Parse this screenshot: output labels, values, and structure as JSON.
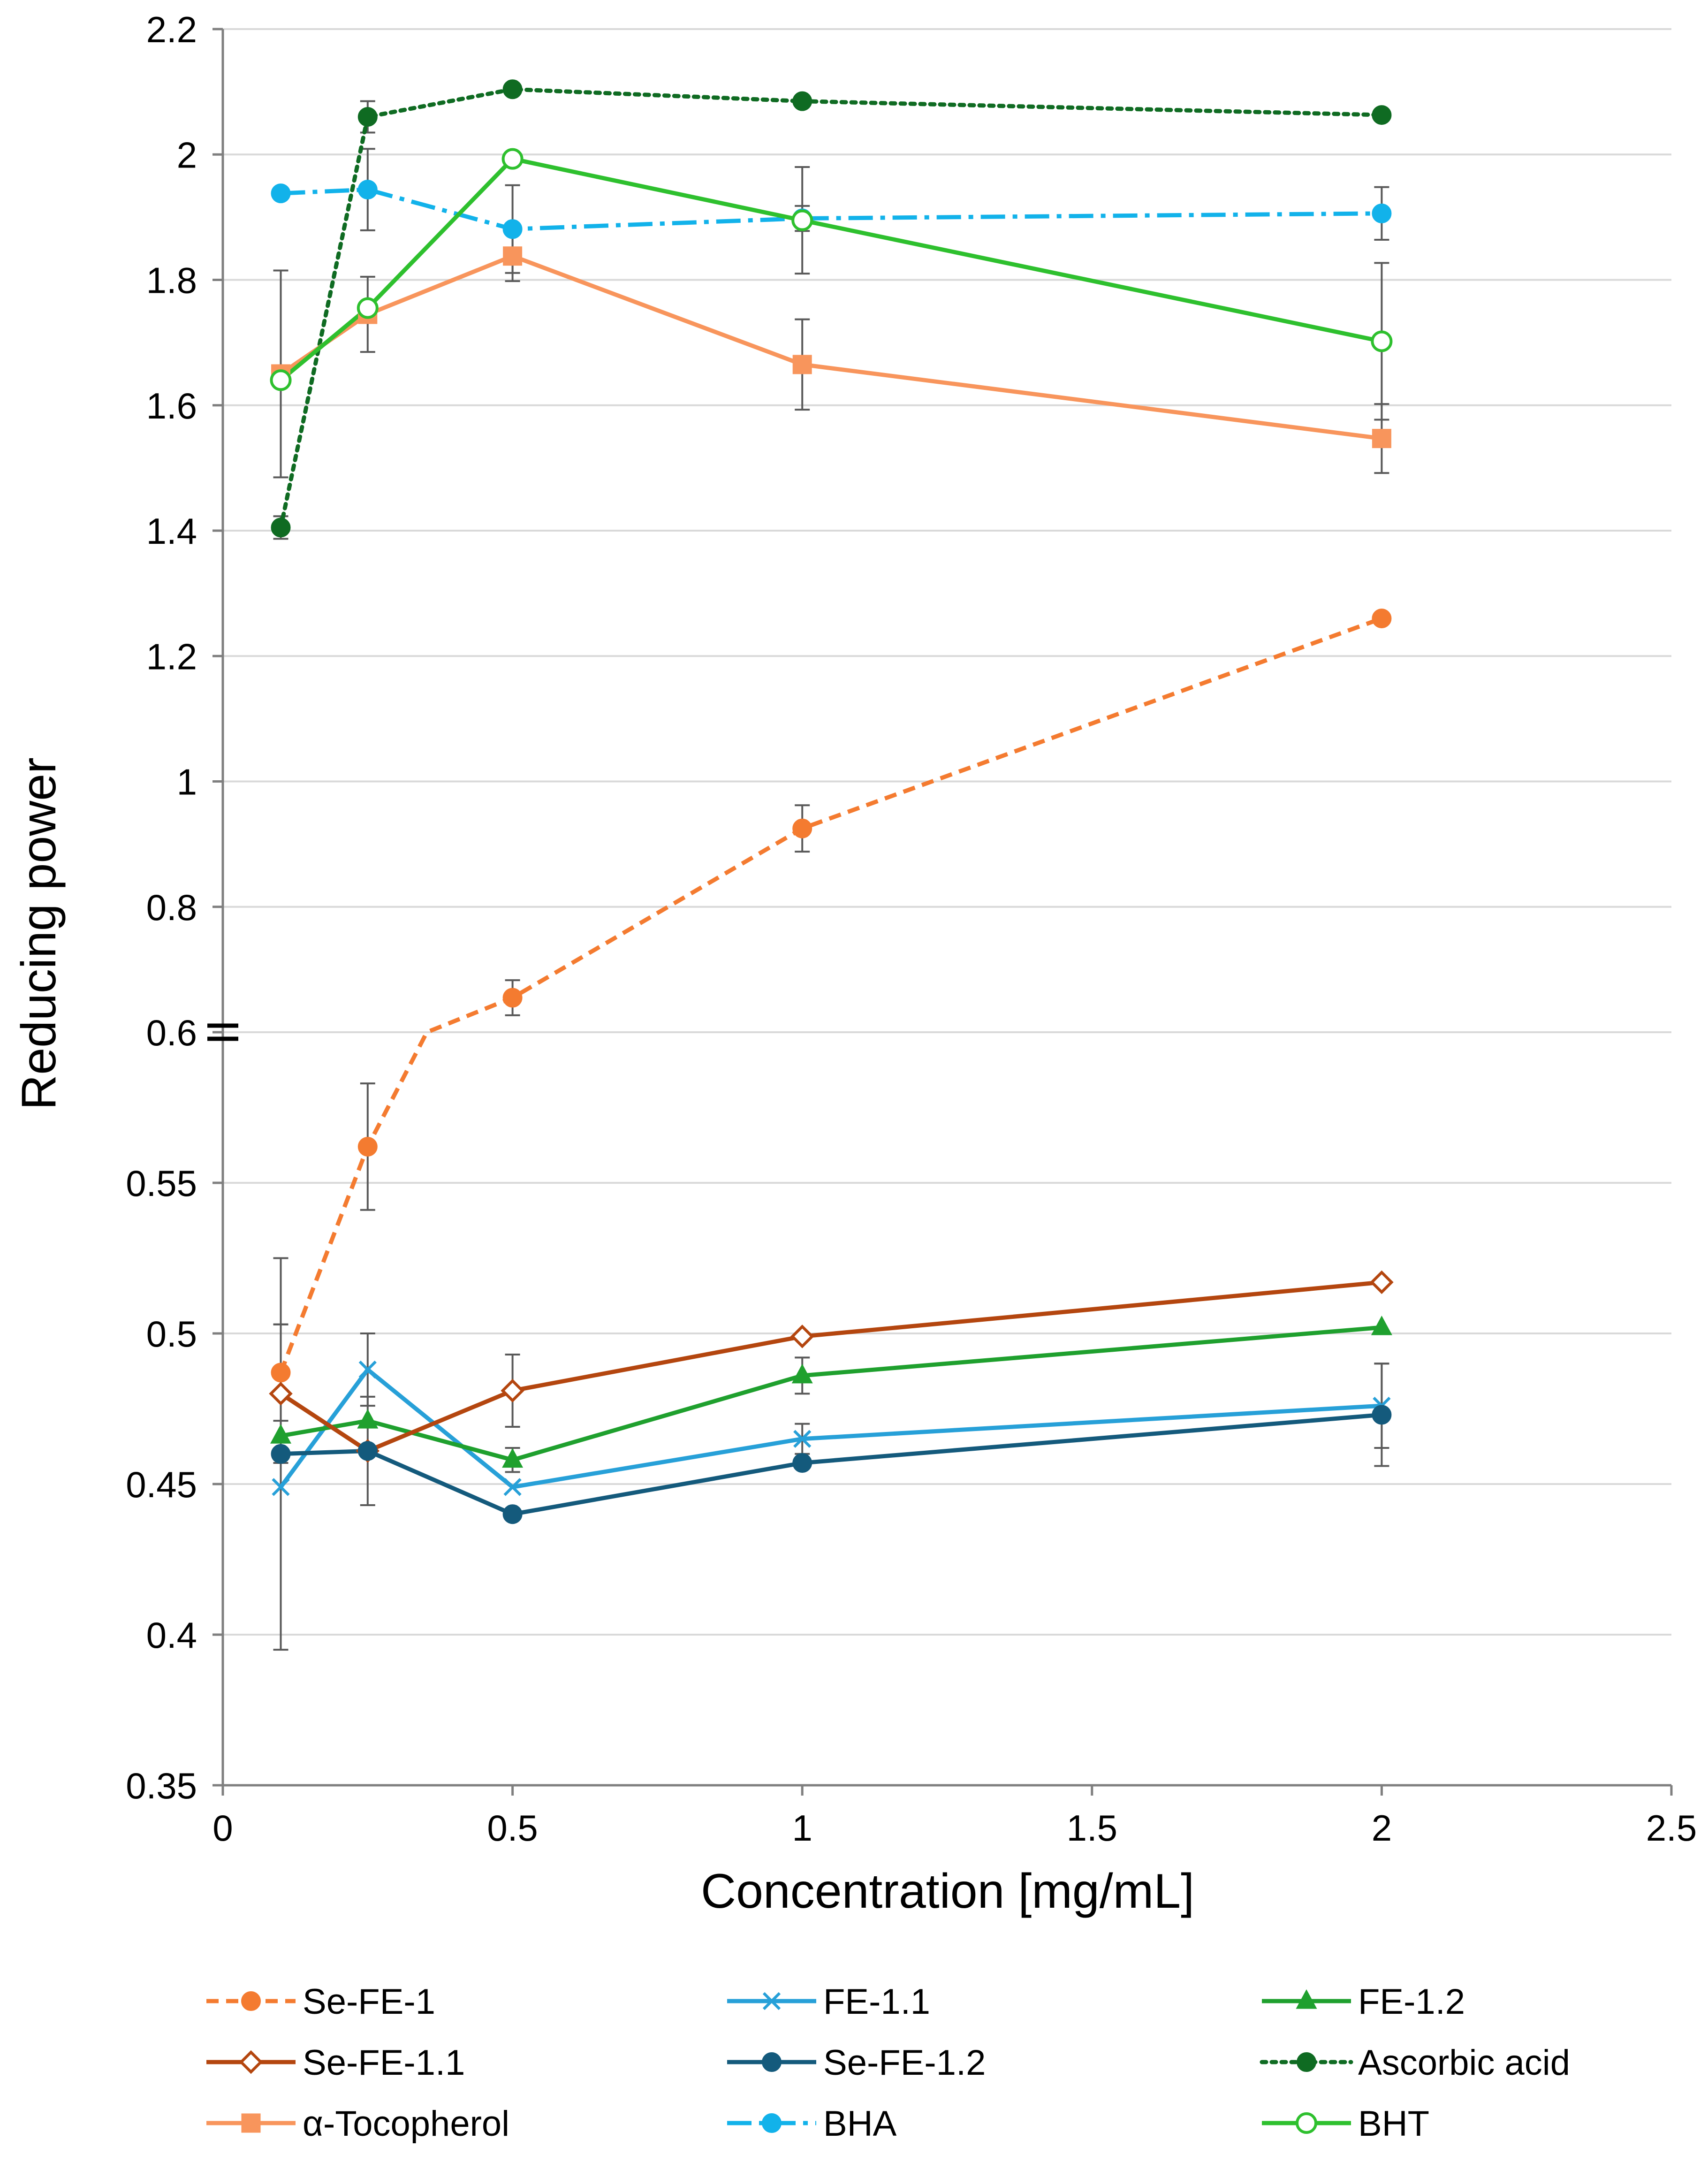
{
  "chart_data": {
    "type": "line",
    "xlabel": "Concentration [mg/mL]",
    "ylabel": "Reducing power",
    "xlim": [
      0,
      2.5
    ],
    "x_ticks": [
      0,
      0.5,
      1,
      1.5,
      2,
      2.5
    ],
    "x_tick_labels": [
      "0",
      "0.5",
      "1",
      "1.5",
      "2",
      "2.5"
    ],
    "y_axis_break": {
      "lower_range": [
        0.35,
        0.6
      ],
      "upper_range": [
        0.6,
        2.2
      ],
      "break_at": 0.6
    },
    "y_ticks": [
      0.35,
      0.4,
      0.45,
      0.5,
      0.55,
      0.6,
      0.8,
      1,
      1.2,
      1.4,
      1.6,
      1.8,
      2,
      2.2
    ],
    "y_tick_labels": [
      "0.35",
      "0.4",
      "0.45",
      "0.5",
      "0.55",
      "0.6",
      "0.8",
      "1",
      "1.2",
      "1.4",
      "1.6",
      "1.8",
      "2",
      "2.2"
    ],
    "grid": "horizontal",
    "legend_position": "bottom",
    "series": [
      {
        "name": "Se-FE-1",
        "color": "#F47B30",
        "line_style": "dashed",
        "marker": "circle-filled",
        "x": [
          0.1,
          0.25,
          0.5,
          1,
          2
        ],
        "y": [
          0.487,
          0.562,
          0.655,
          0.925,
          1.26
        ],
        "err": [
          0.016,
          0.021,
          0.028,
          0.037,
          0
        ]
      },
      {
        "name": "FE-1.1",
        "color": "#27A0D8",
        "line_style": "solid",
        "marker": "x",
        "x": [
          0.1,
          0.25,
          0.5,
          1,
          2
        ],
        "y": [
          0.449,
          0.488,
          0.449,
          0.465,
          0.476
        ],
        "err": [
          0,
          0.012,
          0,
          0.005,
          0.014
        ]
      },
      {
        "name": "FE-1.2",
        "color": "#1FA02E",
        "line_style": "solid",
        "marker": "triangle-filled",
        "x": [
          0.1,
          0.25,
          0.5,
          1,
          2
        ],
        "y": [
          0.466,
          0.471,
          0.458,
          0.486,
          0.502
        ],
        "err": [
          0,
          0,
          0.004,
          0.006,
          0
        ]
      },
      {
        "name": "Se-FE-1.1",
        "color": "#B4460F",
        "line_style": "solid",
        "marker": "diamond-open",
        "x": [
          0.1,
          0.25,
          0.5,
          1,
          2
        ],
        "y": [
          0.48,
          0.461,
          0.481,
          0.499,
          0.517
        ],
        "err": [
          0.023,
          0,
          0.012,
          0,
          0
        ]
      },
      {
        "name": "Se-FE-1.2",
        "color": "#145A7C",
        "line_style": "solid",
        "marker": "circle-filled",
        "x": [
          0.1,
          0.25,
          0.5,
          1,
          2
        ],
        "y": [
          0.46,
          0.461,
          0.44,
          0.457,
          0.473
        ],
        "err": [
          0.065,
          0.018,
          0,
          0,
          0.017
        ]
      },
      {
        "name": "Ascorbic acid",
        "color": "#0F6B22",
        "line_style": "dotted",
        "marker": "circle-filled",
        "x": [
          0.1,
          0.25,
          0.5,
          1,
          2
        ],
        "y": [
          1.405,
          2.06,
          2.104,
          2.085,
          2.063
        ],
        "err": [
          0.018,
          0.025,
          0,
          0,
          0
        ]
      },
      {
        "name": "α-Tocopherol",
        "color": "#F8955C",
        "line_style": "solid",
        "marker": "square-filled",
        "x": [
          0.1,
          0.25,
          0.5,
          1,
          2
        ],
        "y": [
          1.65,
          1.745,
          1.838,
          1.665,
          1.547
        ],
        "err": [
          0.165,
          0.06,
          0.04,
          0.072,
          0.055
        ]
      },
      {
        "name": "BHA",
        "color": "#12B2EA",
        "line_style": "dash-dot",
        "marker": "circle-filled",
        "x": [
          0.1,
          0.25,
          0.5,
          1,
          2
        ],
        "y": [
          1.938,
          1.944,
          1.881,
          1.898,
          1.906
        ],
        "err": [
          0,
          0.065,
          0.07,
          0.02,
          0.042
        ]
      },
      {
        "name": "BHT",
        "color": "#2EC02E",
        "line_style": "solid",
        "marker": "circle-open",
        "x": [
          0.1,
          0.25,
          0.5,
          1,
          2
        ],
        "y": [
          1.64,
          1.755,
          1.993,
          1.895,
          1.702
        ],
        "err": [
          0,
          0,
          0,
          0.085,
          0.125
        ]
      }
    ]
  }
}
